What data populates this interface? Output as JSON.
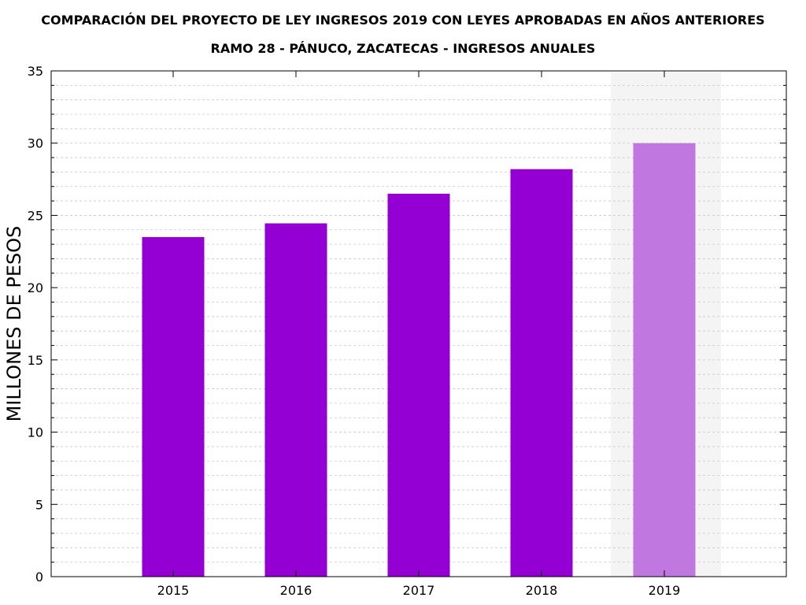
{
  "chart_data": {
    "type": "bar",
    "title": "COMPARACIÓN DEL PROYECTO DE LEY INGRESOS 2019 CON LEYES APROBADAS EN AÑOS ANTERIORES",
    "subtitle": "RAMO 28 - PÁNUCO, ZACATECAS - INGRESOS ANUALES",
    "xlabel": "",
    "ylabel": "MILLONES DE PESOS",
    "categories": [
      "2015",
      "2016",
      "2017",
      "2018",
      "2019"
    ],
    "values": [
      23.5,
      24.45,
      26.5,
      28.2,
      30.0
    ],
    "ylim": [
      0,
      35
    ],
    "yticks": [
      0,
      5,
      10,
      15,
      20,
      25,
      30,
      35
    ],
    "grid": true,
    "highlight_category": "2019",
    "colors": {
      "bar": "#9400d3",
      "bar_highlight": "#c077e0",
      "highlight_band": "#f4f4f4",
      "grid": "#c8c8c8"
    }
  }
}
